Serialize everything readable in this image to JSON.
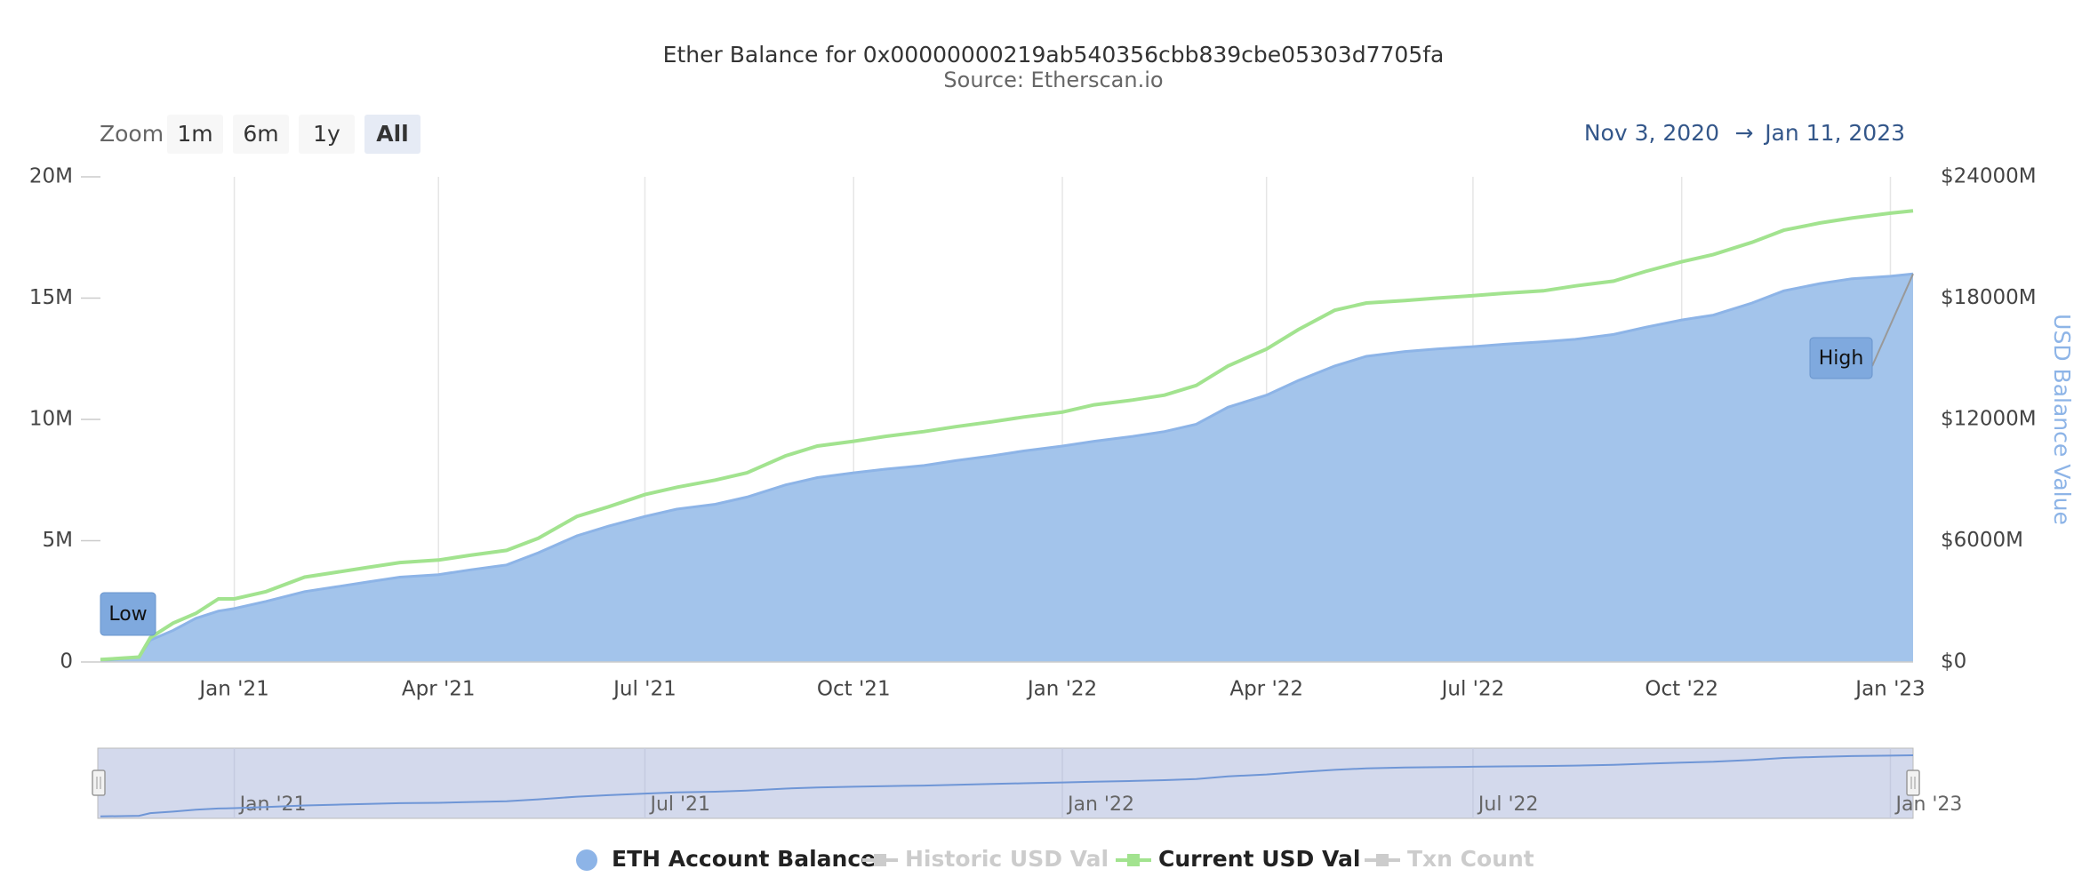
{
  "chart_data": {
    "type": "area",
    "title": "Ether Balance for 0x00000000219ab540356cbb839cbe05303d7705fa",
    "subtitle": "Source: Etherscan.io",
    "zoom": {
      "label": "Zoom",
      "buttons": [
        "1m",
        "6m",
        "1y",
        "All"
      ],
      "selected": 3
    },
    "range": {
      "from": "Nov 3, 2020",
      "arrow": "→",
      "to": "Jan 11, 2023"
    },
    "annotations": [
      "Low",
      "High"
    ],
    "x": [
      "2020-11-03",
      "2020-11-20",
      "2020-11-25",
      "2020-12-05",
      "2020-12-15",
      "2020-12-25",
      "2021-01-01",
      "2021-01-15",
      "2021-02-01",
      "2021-02-15",
      "2021-03-01",
      "2021-03-15",
      "2021-04-01",
      "2021-04-15",
      "2021-05-01",
      "2021-05-15",
      "2021-06-01",
      "2021-06-15",
      "2021-07-01",
      "2021-07-15",
      "2021-08-01",
      "2021-08-15",
      "2021-09-01",
      "2021-09-15",
      "2021-10-01",
      "2021-10-15",
      "2021-11-01",
      "2021-11-15",
      "2021-12-01",
      "2021-12-15",
      "2022-01-01",
      "2022-01-15",
      "2022-02-01",
      "2022-02-15",
      "2022-03-01",
      "2022-03-15",
      "2022-04-01",
      "2022-04-15",
      "2022-05-01",
      "2022-05-15",
      "2022-06-01",
      "2022-06-15",
      "2022-07-01",
      "2022-07-15",
      "2022-08-01",
      "2022-08-15",
      "2022-09-01",
      "2022-09-15",
      "2022-10-01",
      "2022-10-15",
      "2022-11-01",
      "2022-11-15",
      "2022-12-01",
      "2022-12-15",
      "2023-01-01",
      "2023-01-11"
    ],
    "xlim": [
      "2020-11-03",
      "2023-01-11"
    ],
    "xticks": [
      {
        "value": "2021-01-01",
        "label": "Jan '21"
      },
      {
        "value": "2021-04-01",
        "label": "Apr '21"
      },
      {
        "value": "2021-07-01",
        "label": "Jul '21"
      },
      {
        "value": "2021-10-01",
        "label": "Oct '21"
      },
      {
        "value": "2022-01-01",
        "label": "Jan '22"
      },
      {
        "value": "2022-04-01",
        "label": "Apr '22"
      },
      {
        "value": "2022-07-01",
        "label": "Jul '22"
      },
      {
        "value": "2022-10-01",
        "label": "Oct '22"
      },
      {
        "value": "2023-01-01",
        "label": "Jan '23"
      }
    ],
    "navigator_xticks": [
      {
        "value": "2021-01-01",
        "label": "Jan '21"
      },
      {
        "value": "2021-07-01",
        "label": "Jul '21"
      },
      {
        "value": "2022-01-01",
        "label": "Jan '22"
      },
      {
        "value": "2022-07-01",
        "label": "Jul '22"
      },
      {
        "value": "2023-01-01",
        "label": "Jan '23"
      }
    ],
    "ylim": [
      0,
      20000000
    ],
    "yticks": [
      0,
      {
        "value": 5000000,
        "label": "5M"
      },
      {
        "value": 10000000,
        "label": "10M"
      },
      {
        "value": 15000000,
        "label": "15M"
      },
      {
        "value": 20000000,
        "label": "20M"
      }
    ],
    "y2lim": [
      0,
      24000000000
    ],
    "y2ticks": [
      {
        "value": 0,
        "label": "$0"
      },
      {
        "value": 6000000000,
        "label": "$6000M"
      },
      {
        "value": 12000000000,
        "label": "$12000M"
      },
      {
        "value": 18000000000,
        "label": "$18000M"
      },
      {
        "value": 24000000000,
        "label": "$24000M"
      }
    ],
    "y2label": "USD Balance Value",
    "grid": true,
    "series": [
      {
        "name": "ETH Account Balance",
        "color": "#8db4e7",
        "kind": "area",
        "visible": true,
        "values": [
          50000,
          200000,
          900000,
          1300000,
          1800000,
          2100000,
          2200000,
          2500000,
          2900000,
          3100000,
          3300000,
          3500000,
          3600000,
          3800000,
          4000000,
          4500000,
          5200000,
          5600000,
          6000000,
          6300000,
          6500000,
          6800000,
          7300000,
          7600000,
          7800000,
          7950000,
          8100000,
          8300000,
          8500000,
          8700000,
          8900000,
          9100000,
          9300000,
          9500000,
          9800000,
          10500000,
          11000000,
          11600000,
          12200000,
          12600000,
          12800000,
          12900000,
          13000000,
          13100000,
          13200000,
          13300000,
          13500000,
          13800000,
          14100000,
          14300000,
          14800000,
          15300000,
          15600000,
          15800000,
          15900000,
          16000000
        ]
      },
      {
        "name": "Historic USD Val",
        "color": "#cccccc",
        "kind": "line",
        "visible": false
      },
      {
        "name": "Current USD Val",
        "color": "#a2e38f",
        "kind": "line",
        "visible": true,
        "axis": "y2",
        "values": [
          120000000.0,
          240000000.0,
          1200000000.0,
          1920000000.0,
          2400000000.0,
          3120000000.0,
          3120000000.0,
          3480000000.0,
          4200000000.0,
          4440000000.0,
          4680000000.0,
          4920000000.0,
          5040000000.0,
          5280000000.0,
          5520000000.0,
          6120000000.0,
          7200000000.0,
          7680000000.0,
          8280000000.0,
          8640000000.0,
          9000000000.0,
          9360000000.0,
          10200000000.0,
          10680000000.0,
          10920000000.0,
          11160000000.0,
          11400000000.0,
          11640000000.0,
          11880000000.0,
          12120000000.0,
          12360000000.0,
          12720000000.0,
          12960000000.0,
          13200000000.0,
          13680000000.0,
          14640000000.0,
          15480000000.0,
          16440000000.0,
          17400000000.0,
          17760000000.0,
          17880000000.0,
          18000000000.0,
          18120000000.0,
          18240000000.0,
          18360000000.0,
          18600000000.0,
          18840000000.0,
          19320000000.0,
          19800000000.0,
          20160000000.0,
          20760000000.0,
          21360000000.0,
          21720000000.0,
          21960000000.0,
          22200000000.0,
          22320000000.0
        ]
      },
      {
        "name": "Txn Count",
        "color": "#cccccc",
        "kind": "line",
        "visible": false
      }
    ]
  }
}
